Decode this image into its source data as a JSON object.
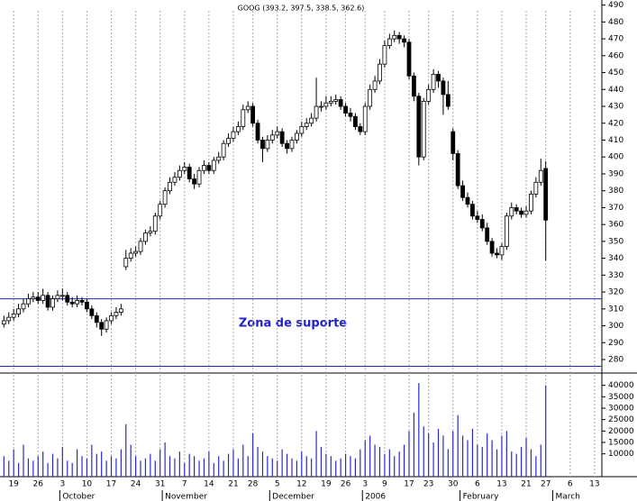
{
  "chart_data": {
    "type": "candlestick",
    "title": "GOOG (393.2, 397.5, 338.5, 362.6)",
    "annotation": "Zona de suporte",
    "support_lines": [
      316,
      276
    ],
    "support_color": "#2222cc",
    "up_color": "#ffffff",
    "down_color": "#000000",
    "volume_color": "#2a2acc",
    "x": [
      -2,
      -1,
      0,
      1,
      2,
      3,
      4,
      5,
      6,
      7,
      8,
      9,
      10,
      11,
      12,
      13,
      14,
      15,
      16,
      17,
      18,
      19,
      20,
      21,
      22,
      23,
      24,
      25,
      26,
      27,
      28,
      29,
      30,
      31,
      32,
      33,
      34,
      35,
      36,
      37,
      38,
      39,
      40,
      41,
      42,
      43,
      44,
      45,
      46,
      47,
      48,
      49,
      50,
      51,
      52,
      53,
      54,
      55,
      56,
      57,
      58,
      59,
      60,
      61,
      62,
      63,
      64,
      65,
      66,
      67,
      68,
      69,
      70,
      71,
      72,
      73,
      74,
      75,
      76,
      77,
      78,
      79,
      80,
      81,
      82,
      83,
      84,
      85,
      86,
      87,
      88,
      89,
      90,
      91,
      92,
      93,
      94,
      95,
      96,
      97,
      98,
      99,
      100,
      101,
      102,
      103,
      104,
      105,
      106,
      107,
      108,
      109
    ],
    "open": [
      301,
      303,
      305,
      307,
      310,
      313,
      316,
      317,
      315,
      318,
      311,
      316,
      318,
      318,
      314,
      313,
      315,
      314,
      310,
      306,
      302,
      298,
      303,
      306,
      308,
      335,
      340,
      343,
      344,
      350,
      355,
      356,
      365,
      372,
      380,
      385,
      388,
      392,
      394,
      387,
      384,
      392,
      395,
      392,
      398,
      400,
      408,
      411,
      415,
      418,
      428,
      430,
      420,
      410,
      405,
      410,
      413,
      415,
      408,
      405,
      410,
      414,
      418,
      420,
      423,
      430,
      430,
      432,
      433,
      434,
      430,
      426,
      424,
      418,
      415,
      430,
      440,
      445,
      455,
      466,
      470,
      472,
      470,
      468,
      448,
      436,
      400,
      433,
      440,
      449,
      445,
      437,
      415,
      402,
      383,
      376,
      372,
      365,
      363,
      358,
      350,
      343,
      342,
      347,
      365,
      370,
      368,
      366,
      368,
      378,
      385,
      393.2
    ],
    "high": [
      306,
      308,
      310,
      313,
      316,
      319,
      320,
      320,
      322,
      320,
      318,
      321,
      322,
      320,
      317,
      318,
      317,
      316,
      312,
      308,
      304,
      305,
      308,
      311,
      313,
      345,
      346,
      347,
      352,
      357,
      359,
      367,
      374,
      382,
      388,
      391,
      395,
      397,
      396,
      390,
      394,
      398,
      397,
      400,
      403,
      410,
      414,
      418,
      421,
      431,
      433,
      432,
      422,
      412,
      413,
      416,
      418,
      417,
      410,
      412,
      416,
      421,
      423,
      426,
      447,
      433,
      436,
      436,
      437,
      436,
      432,
      429,
      426,
      420,
      432,
      443,
      448,
      458,
      469,
      473,
      475,
      474,
      472,
      470,
      450,
      438,
      435,
      443,
      452,
      451,
      447,
      445,
      417,
      404,
      386,
      379,
      374,
      368,
      366,
      361,
      352,
      346,
      349,
      367,
      373,
      372,
      370,
      371,
      380,
      388,
      399,
      397.5
    ],
    "low": [
      299,
      301,
      303,
      305,
      308,
      311,
      314,
      313,
      313,
      309,
      309,
      314,
      315,
      312,
      311,
      311,
      312,
      308,
      304,
      299,
      294,
      296,
      301,
      304,
      306,
      333,
      338,
      341,
      342,
      348,
      353,
      354,
      363,
      370,
      378,
      383,
      386,
      390,
      385,
      381,
      382,
      390,
      390,
      390,
      396,
      398,
      406,
      409,
      413,
      416,
      426,
      418,
      408,
      397,
      403,
      408,
      411,
      406,
      402,
      403,
      408,
      412,
      416,
      418,
      421,
      427,
      428,
      430,
      431,
      428,
      424,
      421,
      416,
      413,
      413,
      428,
      438,
      443,
      453,
      464,
      468,
      467,
      465,
      446,
      433,
      395,
      398,
      431,
      438,
      441,
      425,
      428,
      398,
      381,
      374,
      370,
      363,
      361,
      356,
      348,
      341,
      340,
      339,
      345,
      363,
      366,
      364,
      364,
      366,
      376,
      383,
      338.5
    ],
    "close": [
      303,
      305,
      307,
      310,
      313,
      316,
      317,
      315,
      318,
      311,
      316,
      318,
      318,
      314,
      313,
      315,
      314,
      310,
      306,
      302,
      298,
      303,
      306,
      308,
      310,
      340,
      343,
      344,
      350,
      355,
      356,
      365,
      372,
      380,
      385,
      388,
      392,
      394,
      387,
      384,
      392,
      395,
      392,
      398,
      400,
      408,
      411,
      415,
      418,
      428,
      430,
      420,
      410,
      405,
      410,
      413,
      415,
      408,
      405,
      410,
      414,
      418,
      420,
      423,
      430,
      430,
      432,
      433,
      434,
      430,
      426,
      424,
      418,
      415,
      430,
      440,
      445,
      455,
      466,
      470,
      472,
      470,
      468,
      448,
      436,
      400,
      433,
      440,
      449,
      445,
      437,
      430,
      402,
      383,
      376,
      372,
      365,
      363,
      358,
      350,
      343,
      342,
      347,
      365,
      370,
      368,
      366,
      368,
      378,
      385,
      392,
      362.6
    ],
    "volume": [
      9000,
      7000,
      12000,
      6000,
      14000,
      8000,
      7000,
      9000,
      11000,
      6000,
      10000,
      8000,
      13000,
      7000,
      6000,
      12000,
      9000,
      8000,
      14000,
      10000,
      11000,
      7000,
      9000,
      8000,
      12000,
      23000,
      14000,
      9000,
      7000,
      8000,
      10000,
      7000,
      12000,
      15000,
      9000,
      8000,
      11000,
      6000,
      10000,
      9000,
      7000,
      8000,
      11000,
      6000,
      9000,
      7000,
      10000,
      12000,
      8000,
      14000,
      9000,
      19000,
      13000,
      11000,
      9000,
      8000,
      7000,
      12000,
      10000,
      8000,
      7000,
      11000,
      9000,
      8000,
      20000,
      13000,
      10000,
      9000,
      7000,
      8000,
      10000,
      9000,
      8000,
      12000,
      16000,
      18000,
      14000,
      13000,
      10000,
      12000,
      9000,
      11000,
      14000,
      20000,
      28000,
      41000,
      22000,
      19000,
      15000,
      21000,
      18000,
      12000,
      20000,
      27000,
      18000,
      16000,
      21000,
      14000,
      13000,
      19000,
      16000,
      12000,
      18000,
      20000,
      11000,
      10000,
      13000,
      17000,
      12000,
      9000,
      14000,
      40000
    ],
    "xlim": [
      -2.8,
      120.5
    ],
    "ylim": [
      272,
      493
    ],
    "volume_ylim": [
      0,
      45000
    ],
    "yticks": [
      280,
      290,
      300,
      310,
      320,
      330,
      340,
      350,
      360,
      370,
      380,
      390,
      400,
      410,
      420,
      430,
      440,
      450,
      460,
      470,
      480,
      490
    ],
    "volume_ticks": [
      10000,
      15000,
      20000,
      25000,
      30000,
      35000,
      40000
    ],
    "xticks": [
      {
        "value": 0,
        "label": "19"
      },
      {
        "value": 5,
        "label": "26"
      },
      {
        "value": 10,
        "label": "3"
      },
      {
        "value": 15,
        "label": "10"
      },
      {
        "value": 20,
        "label": "17"
      },
      {
        "value": 25,
        "label": "24"
      },
      {
        "value": 30,
        "label": "31"
      },
      {
        "value": 35,
        "label": "7"
      },
      {
        "value": 40,
        "label": "14"
      },
      {
        "value": 45,
        "label": "21"
      },
      {
        "value": 49,
        "label": "28"
      },
      {
        "value": 54,
        "label": "5"
      },
      {
        "value": 59,
        "label": "12"
      },
      {
        "value": 64,
        "label": "19"
      },
      {
        "value": 68,
        "label": "26"
      },
      {
        "value": 72,
        "label": "3"
      },
      {
        "value": 76,
        "label": "9"
      },
      {
        "value": 81,
        "label": "17"
      },
      {
        "value": 85,
        "label": "23"
      },
      {
        "value": 90,
        "label": "30"
      },
      {
        "value": 95,
        "label": "6"
      },
      {
        "value": 100,
        "label": "13"
      },
      {
        "value": 105,
        "label": "21"
      },
      {
        "value": 109,
        "label": "27"
      },
      {
        "value": 114,
        "label": "6"
      },
      {
        "value": 119,
        "label": "13"
      }
    ],
    "month_ticks": [
      {
        "value": 10,
        "label": "October"
      },
      {
        "value": 31,
        "label": "November"
      },
      {
        "value": 53,
        "label": "December"
      },
      {
        "value": 72,
        "label": "2006"
      },
      {
        "value": 92,
        "label": "February"
      },
      {
        "value": 111,
        "label": "March"
      }
    ]
  }
}
